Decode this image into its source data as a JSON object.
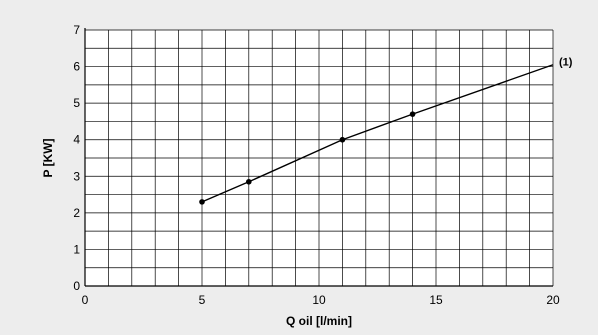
{
  "chart_data": {
    "type": "line",
    "xlabel": "Q oil [l/min]",
    "ylabel": "P [KW]",
    "xlim": [
      0,
      20
    ],
    "ylim": [
      0,
      7
    ],
    "x_ticks": [
      "0",
      "5",
      "10",
      "15",
      "20"
    ],
    "y_ticks": [
      "0",
      "1",
      "2",
      "3",
      "4",
      "5",
      "6",
      "7"
    ],
    "grid": true,
    "series": [
      {
        "name": "(1)",
        "x": [
          5,
          7,
          11,
          14,
          20
        ],
        "y": [
          2.3,
          2.85,
          4.0,
          4.7,
          6.05
        ],
        "marker_points": [
          [
            5,
            2.3
          ],
          [
            7,
            2.85
          ],
          [
            11,
            4.0
          ],
          [
            14,
            4.7
          ]
        ]
      }
    ],
    "colors": {
      "line": "#000000",
      "grid": "#000000",
      "background": "#ededed",
      "plot_area": "#ffffff"
    }
  }
}
